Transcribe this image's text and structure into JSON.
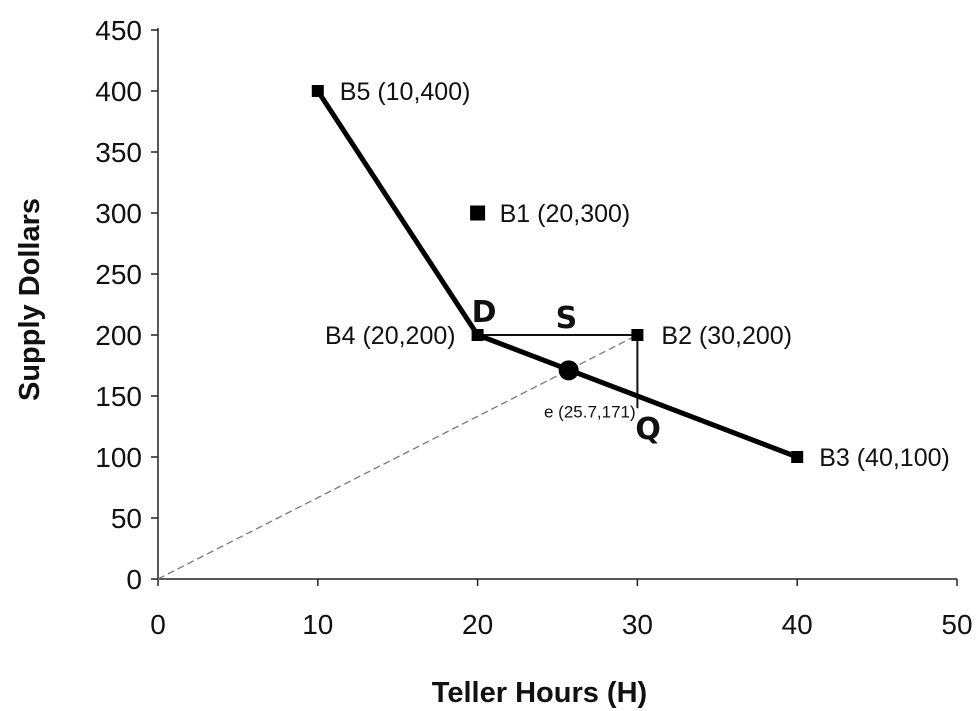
{
  "chart_data": {
    "type": "scatter",
    "xlabel": "Teller Hours (H)",
    "ylabel": "Supply Dollars",
    "xlim": [
      0,
      50
    ],
    "ylim": [
      0,
      450
    ],
    "xticks": [
      "0",
      "10",
      "20",
      "30",
      "40",
      "50"
    ],
    "yticks": [
      "0",
      "50",
      "100",
      "150",
      "200",
      "250",
      "300",
      "350",
      "400",
      "450"
    ],
    "grid": false,
    "points": [
      {
        "label": "B5 (10,400)",
        "x": 10,
        "y": 400
      },
      {
        "label": "B1 (20,300)",
        "x": 20,
        "y": 300
      },
      {
        "label": "B4 (20,200)",
        "x": 20,
        "y": 200
      },
      {
        "label": "B2 (30,200)",
        "x": 30,
        "y": 200
      },
      {
        "label": "B3 (40,100)",
        "x": 40,
        "y": 100
      }
    ],
    "frontier": [
      [
        10,
        400
      ],
      [
        20,
        200
      ],
      [
        40,
        100
      ]
    ],
    "ray": [
      [
        0,
        0
      ],
      [
        30,
        200
      ]
    ],
    "projection": {
      "label": "e (25.7,171)",
      "x": 25.7,
      "y": 171
    },
    "construction_lines": [
      [
        [
          20,
          200
        ],
        [
          30,
          200
        ]
      ],
      [
        [
          30,
          200
        ],
        [
          30,
          140
        ]
      ]
    ],
    "annotations": [
      {
        "text": "D",
        "x": 20,
        "y": 200
      },
      {
        "text": "S",
        "x": 25.7,
        "y": 200
      },
      {
        "text": "Q",
        "x": 30,
        "y": 140
      }
    ]
  }
}
